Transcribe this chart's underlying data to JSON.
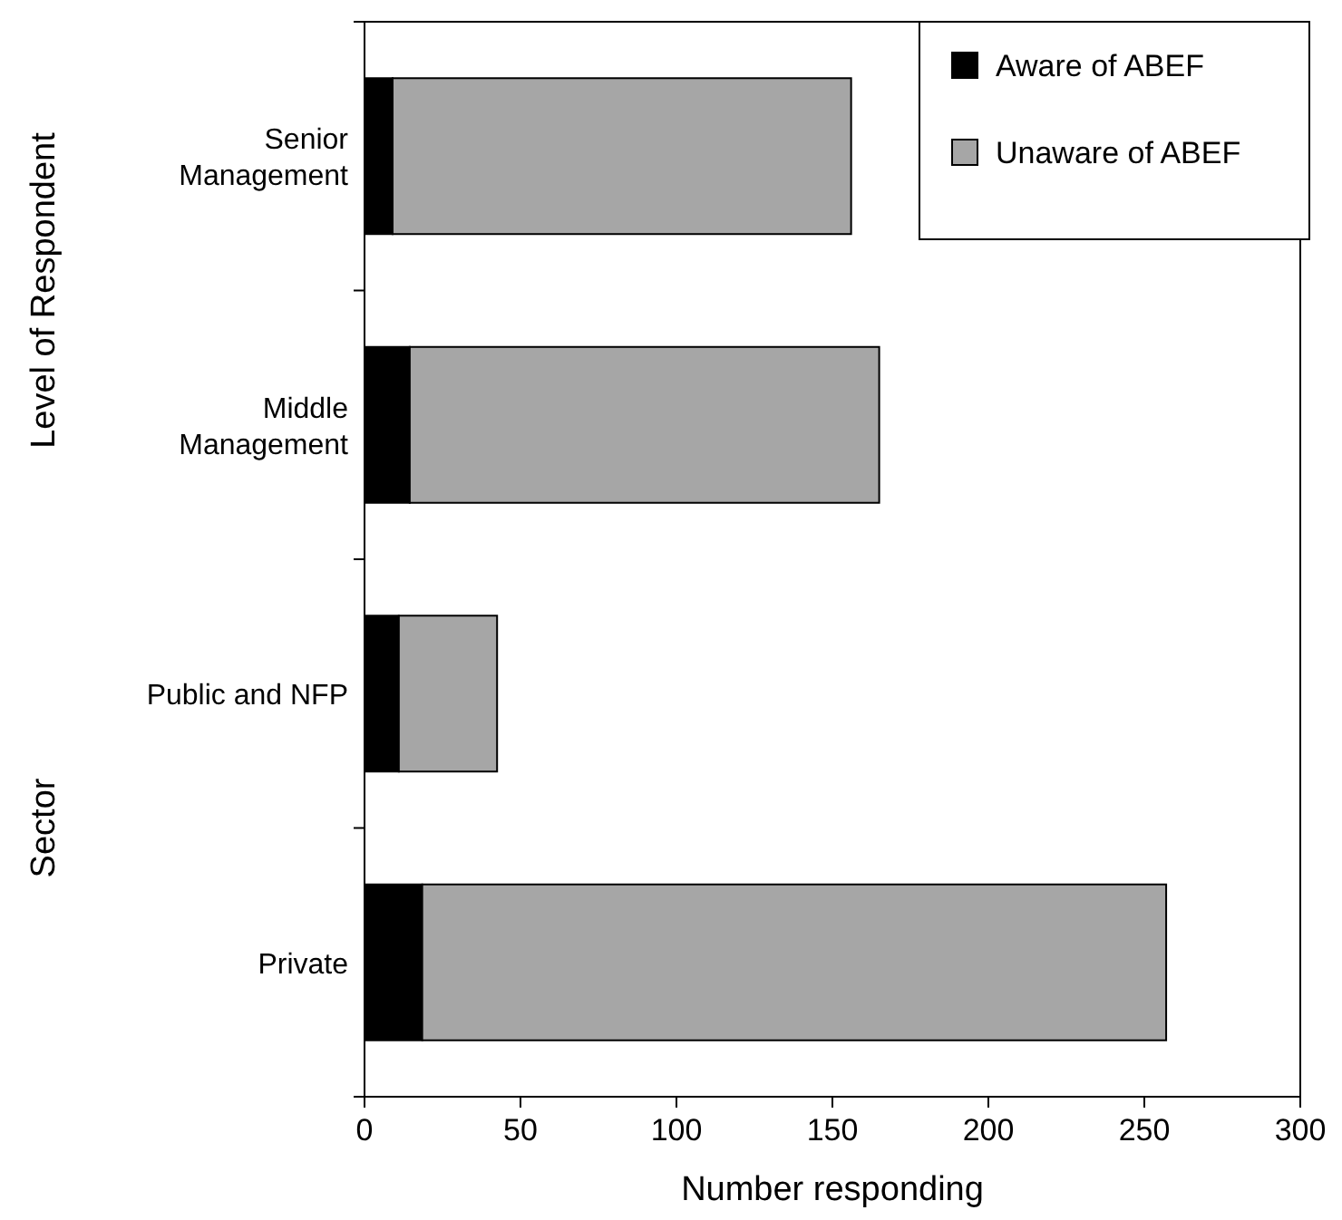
{
  "chart_data": {
    "type": "bar",
    "orientation": "horizontal",
    "stacked": true,
    "categories": [
      "Senior Management",
      "Middle Management",
      "Public and NFP",
      "Private"
    ],
    "series": [
      {
        "name": "Aware of ABEF",
        "color": "#000000",
        "values": [
          9,
          14.5,
          11,
          18.5
        ]
      },
      {
        "name": "Unaware of ABEF",
        "color": "#a6a6a6",
        "values": [
          147,
          150.5,
          31.5,
          238.5
        ]
      }
    ],
    "xlim": [
      0,
      300
    ],
    "xticks": [
      0,
      50,
      100,
      150,
      200,
      250,
      300
    ],
    "xlabel": "Number responding",
    "ylabel": "Level of Respondent",
    "annotations": [
      "Sector"
    ],
    "legend": "top right",
    "grid": false
  }
}
